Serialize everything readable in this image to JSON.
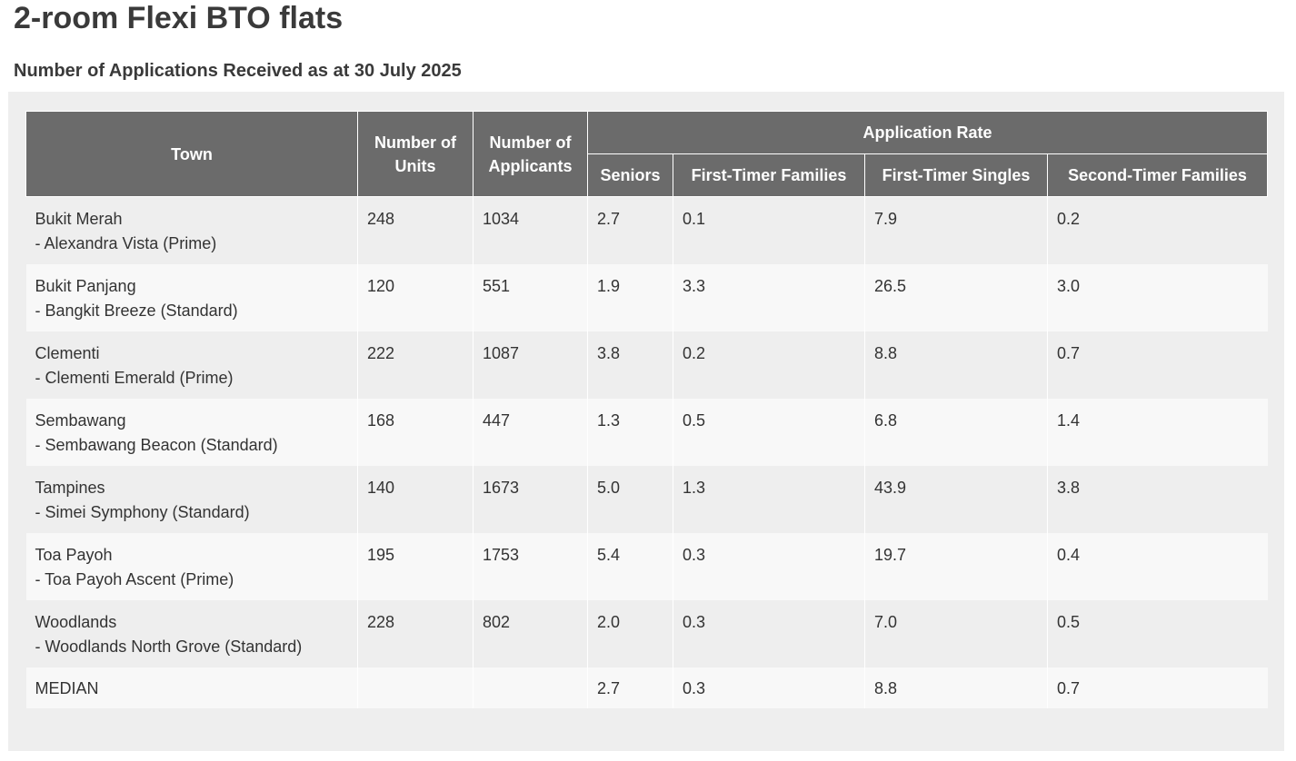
{
  "page": {
    "title": "2-room Flexi BTO flats",
    "subtitle": "Number of Applications Received as at 30 July 2025"
  },
  "table": {
    "headers": {
      "town": "Town",
      "units": "Number of Units",
      "applicants": "Number of Applicants",
      "rate_group": "Application Rate",
      "seniors": "Seniors",
      "first_timer_families": "First-Timer Families",
      "first_timer_singles": "First-Timer Singles",
      "second_timer_families": "Second-Timer Families"
    },
    "rows": [
      {
        "town": "Bukit Merah",
        "project": "- Alexandra Vista (Prime)",
        "units": "248",
        "applicants": "1034",
        "seniors": "2.7",
        "ftf": "0.1",
        "fts": "7.9",
        "stf": "0.2"
      },
      {
        "town": "Bukit Panjang",
        "project": "- Bangkit Breeze (Standard)",
        "units": "120",
        "applicants": "551",
        "seniors": "1.9",
        "ftf": "3.3",
        "fts": "26.5",
        "stf": "3.0"
      },
      {
        "town": "Clementi",
        "project": "- Clementi Emerald (Prime)",
        "units": "222",
        "applicants": "1087",
        "seniors": "3.8",
        "ftf": "0.2",
        "fts": "8.8",
        "stf": "0.7"
      },
      {
        "town": "Sembawang",
        "project": "- Sembawang Beacon (Standard)",
        "units": "168",
        "applicants": "447",
        "seniors": "1.3",
        "ftf": "0.5",
        "fts": "6.8",
        "stf": "1.4"
      },
      {
        "town": "Tampines",
        "project": "- Simei Symphony (Standard)",
        "units": "140",
        "applicants": "1673",
        "seniors": "5.0",
        "ftf": "1.3",
        "fts": "43.9",
        "stf": "3.8"
      },
      {
        "town": "Toa Payoh",
        "project": "- Toa Payoh Ascent (Prime)",
        "units": "195",
        "applicants": "1753",
        "seniors": "5.4",
        "ftf": "0.3",
        "fts": "19.7",
        "stf": "0.4"
      },
      {
        "town": "Woodlands",
        "project": "- Woodlands North Grove (Standard)",
        "units": "228",
        "applicants": "802",
        "seniors": "2.0",
        "ftf": "0.3",
        "fts": "7.0",
        "stf": "0.5"
      }
    ],
    "median": {
      "label": "MEDIAN",
      "seniors": "2.7",
      "ftf": "0.3",
      "fts": "8.8",
      "stf": "0.7"
    }
  }
}
